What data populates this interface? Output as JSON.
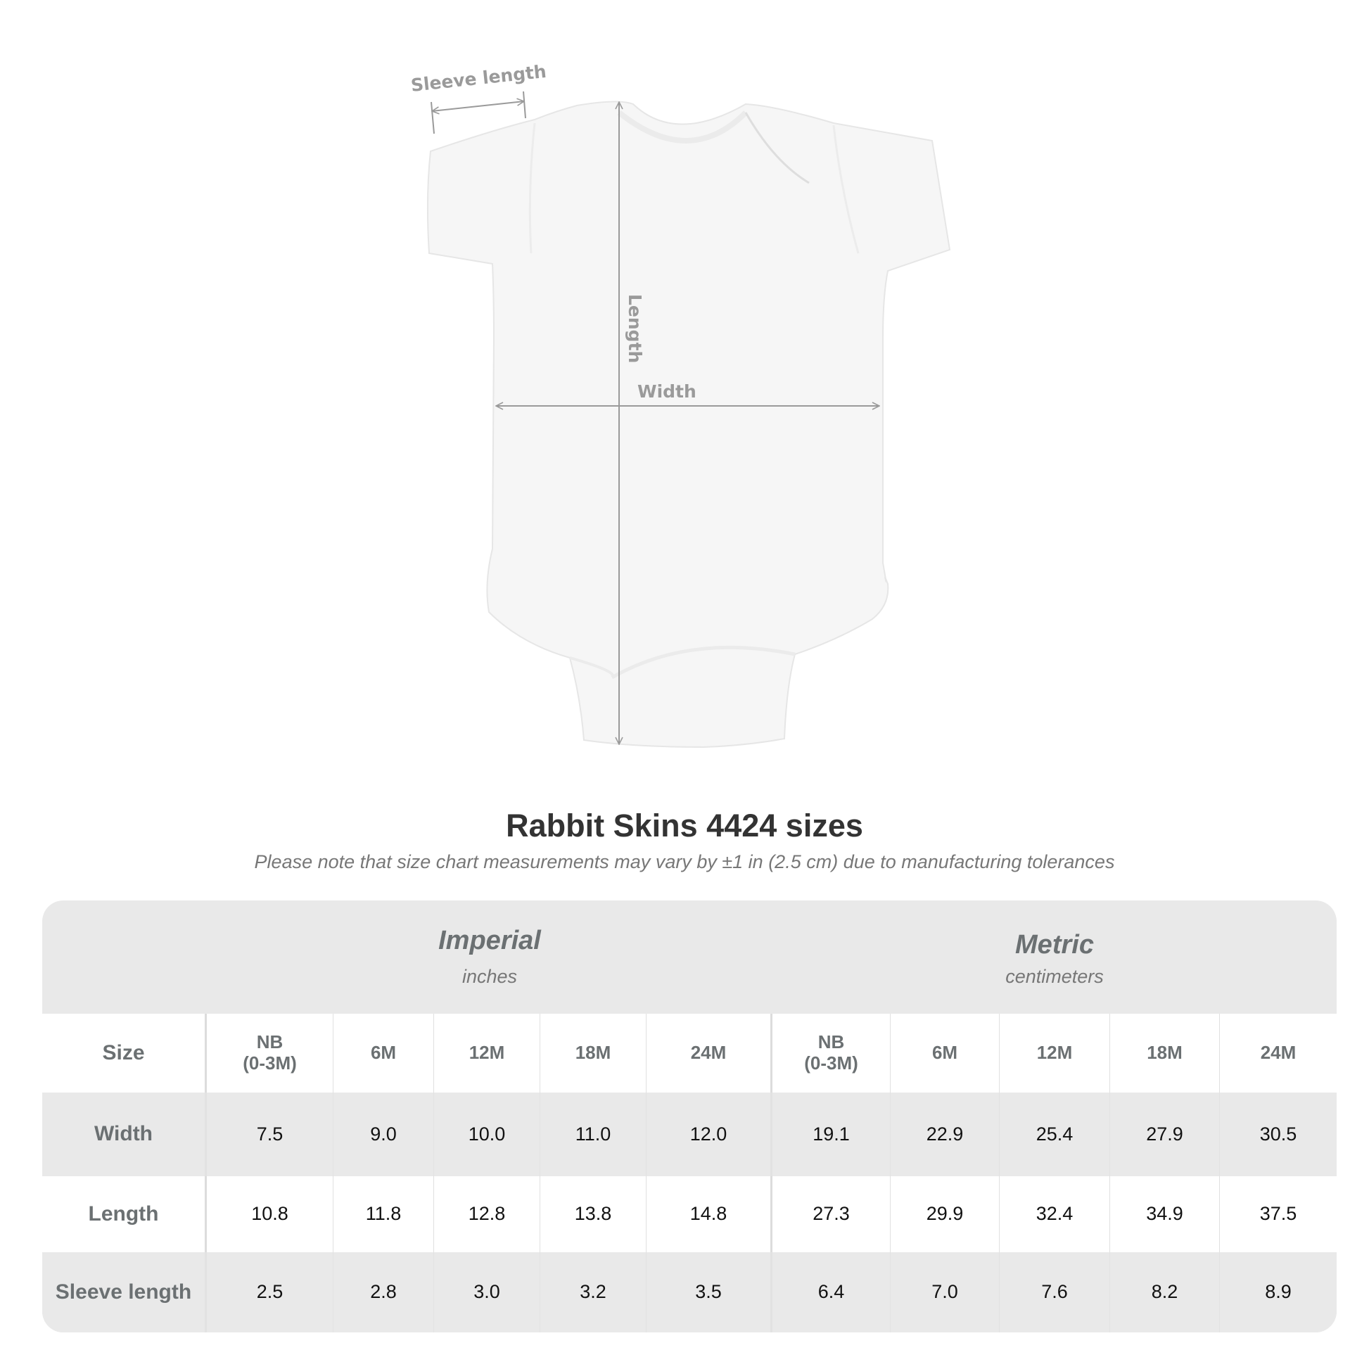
{
  "diagram": {
    "labels": {
      "sleeve": "Sleeve length",
      "length": "Length",
      "width": "Width"
    },
    "colors": {
      "garment": "#f6f6f6",
      "arrow": "#9a9a9a"
    }
  },
  "title": "Rabbit Skins 4424 sizes",
  "subtitle": "Please note that size chart measurements may vary by ±1 in (2.5 cm) due to manufacturing tolerances",
  "table": {
    "imperial": {
      "label": "Imperial",
      "unit": "inches"
    },
    "metric": {
      "label": "Metric",
      "unit": "centimeters"
    },
    "size_label": "Size",
    "sizes": [
      "NB\n(0-3M)",
      "6M",
      "12M",
      "18M",
      "24M"
    ],
    "rows": [
      {
        "label": "Width",
        "imperial": [
          "7.5",
          "9.0",
          "10.0",
          "11.0",
          "12.0"
        ],
        "metric": [
          "19.1",
          "22.9",
          "25.4",
          "27.9",
          "30.5"
        ]
      },
      {
        "label": "Length",
        "imperial": [
          "10.8",
          "11.8",
          "12.8",
          "13.8",
          "14.8"
        ],
        "metric": [
          "27.3",
          "29.9",
          "32.4",
          "34.9",
          "37.5"
        ]
      },
      {
        "label": "Sleeve length",
        "imperial": [
          "2.5",
          "2.8",
          "3.0",
          "3.2",
          "3.5"
        ],
        "metric": [
          "6.4",
          "7.0",
          "7.6",
          "8.2",
          "8.9"
        ]
      }
    ]
  }
}
